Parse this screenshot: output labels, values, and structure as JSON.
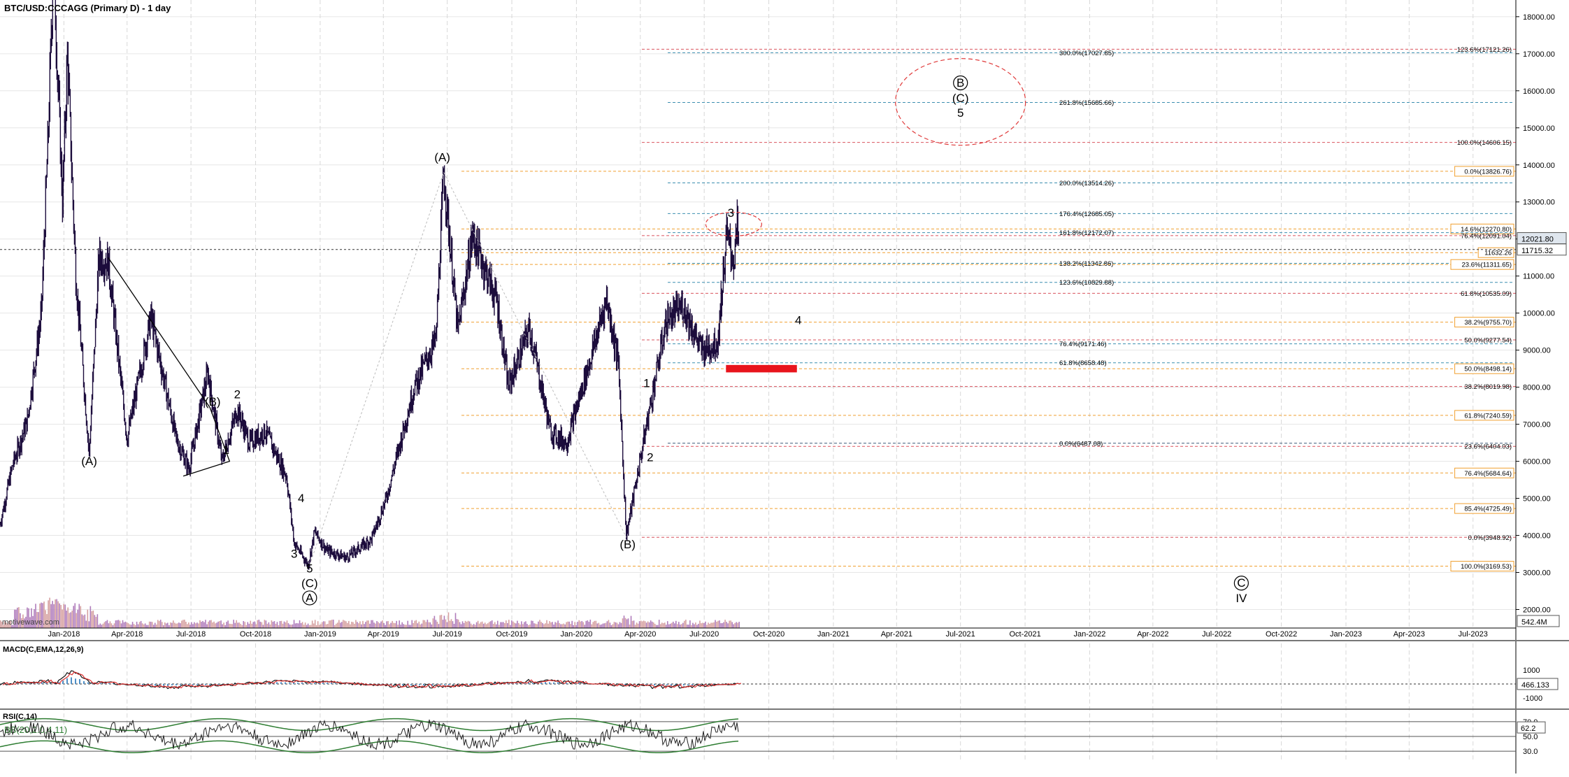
{
  "chart_data": {
    "type": "candlestick",
    "title": "BTC/USD:CCCAGG (Primary D) - 1 day",
    "watermark": "motivewave.com",
    "price_axis": {
      "ylim": [
        1500,
        18450
      ],
      "ticks": [
        2000,
        3000,
        4000,
        5000,
        6000,
        7000,
        8000,
        9000,
        10000,
        11000,
        12000,
        13000,
        14000,
        15000,
        16000,
        17000,
        18000
      ],
      "tick_labels": [
        "2000.00",
        "3000.00",
        "4000.00",
        "5000.00",
        "6000.00",
        "7000.00",
        "8000.00",
        "9000.00",
        "10000.00",
        "11000.00",
        "12000.00",
        "13000.00",
        "14000.00",
        "15000.00",
        "16000.00",
        "17000.00",
        "18000.00"
      ]
    },
    "time_axis": {
      "labels": [
        "Jan-2018",
        "Apr-2018",
        "Jul-2018",
        "Oct-2018",
        "Jan-2019",
        "Apr-2019",
        "Jul-2019",
        "Oct-2019",
        "Jan-2020",
        "Apr-2020",
        "Jul-2020",
        "Oct-2020",
        "Jan-2021",
        "Apr-2021",
        "Jul-2021",
        "Oct-2021",
        "Jan-2022",
        "Apr-2022",
        "Jul-2022",
        "Oct-2022",
        "Jan-2023",
        "Apr-2023",
        "Jul-2023"
      ],
      "start": "2017-10-02",
      "end": "2023-08-31"
    },
    "price_series": {
      "name": "BTC/USD",
      "points": [
        [
          "2017-10-02",
          4300
        ],
        [
          "2017-10-20",
          5900
        ],
        [
          "2017-11-10",
          7100
        ],
        [
          "2017-11-30",
          10000
        ],
        [
          "2017-12-10",
          15000
        ],
        [
          "2017-12-17",
          19500
        ],
        [
          "2017-12-30",
          13000
        ],
        [
          "2018-01-06",
          17000
        ],
        [
          "2018-01-18",
          11000
        ],
        [
          "2018-02-06",
          6200
        ],
        [
          "2018-02-20",
          11500
        ],
        [
          "2018-03-05",
          11400
        ],
        [
          "2018-04-01",
          6600
        ],
        [
          "2018-05-05",
          9900
        ],
        [
          "2018-06-10",
          6600
        ],
        [
          "2018-06-28",
          5800
        ],
        [
          "2018-07-25",
          8400
        ],
        [
          "2018-08-14",
          6000
        ],
        [
          "2018-09-05",
          7400
        ],
        [
          "2018-09-22",
          6500
        ],
        [
          "2018-10-15",
          6800
        ],
        [
          "2018-11-14",
          5600
        ],
        [
          "2018-11-25",
          3800
        ],
        [
          "2018-12-15",
          3200
        ],
        [
          "2018-12-24",
          4100
        ],
        [
          "2019-01-10",
          3600
        ],
        [
          "2019-02-07",
          3400
        ],
        [
          "2019-03-15",
          3900
        ],
        [
          "2019-04-05",
          5000
        ],
        [
          "2019-05-15",
          8000
        ],
        [
          "2019-06-15",
          9300
        ],
        [
          "2019-06-26",
          13800
        ],
        [
          "2019-07-16",
          9500
        ],
        [
          "2019-08-06",
          12100
        ],
        [
          "2019-09-10",
          10300
        ],
        [
          "2019-09-26",
          8000
        ],
        [
          "2019-10-26",
          9600
        ],
        [
          "2019-11-25",
          6800
        ],
        [
          "2019-12-18",
          6500
        ],
        [
          "2020-01-20",
          8700
        ],
        [
          "2020-02-13",
          10400
        ],
        [
          "2020-03-01",
          8600
        ],
        [
          "2020-03-12",
          4000
        ],
        [
          "2020-04-10",
          7000
        ],
        [
          "2020-05-08",
          9800
        ],
        [
          "2020-06-01",
          10200
        ],
        [
          "2020-06-27",
          9000
        ],
        [
          "2020-07-20",
          9200
        ],
        [
          "2020-07-28",
          11000
        ],
        [
          "2020-08-02",
          12100
        ],
        [
          "2020-08-12",
          11400
        ],
        [
          "2020-08-17",
          12300
        ],
        [
          "2020-08-20",
          11800
        ]
      ]
    },
    "last_price": "11715.32",
    "high_marker": "12021.80",
    "volume_label": "542.4M",
    "fib_levels": [
      {
        "label": "123.6%(17121.26)",
        "value": 17121.26,
        "color": "#d9545f",
        "side": "right"
      },
      {
        "label": "300.0%(17027.85)",
        "value": 17027.85,
        "color": "#3c8fb0",
        "side": "mid"
      },
      {
        "label": "261.8%(15685.66)",
        "value": 15685.66,
        "color": "#3c8fb0",
        "side": "mid"
      },
      {
        "label": "100.0%(14606.15)",
        "value": 14606.15,
        "color": "#d9545f",
        "side": "right"
      },
      {
        "label": "0.0%(13826.76)",
        "value": 13826.76,
        "color": "#f0a030",
        "side": "right-box"
      },
      {
        "label": "200.0%(13514.26)",
        "value": 13514.26,
        "color": "#3c8fb0",
        "side": "mid"
      },
      {
        "label": "176.4%(12685.05)",
        "value": 12685.05,
        "color": "#3c8fb0",
        "side": "mid"
      },
      {
        "label": "14.6%(12270.80)",
        "value": 12270.8,
        "color": "#f0a030",
        "side": "right-box"
      },
      {
        "label": "161.8%(12172.07)",
        "value": 12172.07,
        "color": "#3c8fb0",
        "side": "mid"
      },
      {
        "label": "76.4%(12091.04)",
        "value": 12091.04,
        "color": "#d9545f",
        "side": "right"
      },
      {
        "label": "11632.26",
        "value": 11632.26,
        "color": "#f0a030",
        "side": "right-box"
      },
      {
        "label": "138.2%(11342.86)",
        "value": 11342.86,
        "color": "#3c8fb0",
        "side": "mid"
      },
      {
        "label": "23.6%(11311.65)",
        "value": 11311.65,
        "color": "#f0a030",
        "side": "right-box"
      },
      {
        "label": "123.6%(10829.88)",
        "value": 10829.88,
        "color": "#3c8fb0",
        "side": "mid"
      },
      {
        "label": "61.8%(10535.09)",
        "value": 10535.09,
        "color": "#d9545f",
        "side": "right"
      },
      {
        "label": "38.2%(9755.70)",
        "value": 9755.7,
        "color": "#f0a030",
        "side": "right-box"
      },
      {
        "label": "50.0%(9277.54)",
        "value": 9277.54,
        "color": "#d9545f",
        "side": "right"
      },
      {
        "label": "76.4%(9171.46)",
        "value": 9171.46,
        "color": "#3c8fb0",
        "side": "mid"
      },
      {
        "label": "61.8%(8658.48)",
        "value": 8658.48,
        "color": "#3c8fb0",
        "side": "mid"
      },
      {
        "label": "50.0%(8498.14)",
        "value": 8498.14,
        "color": "#f0a030",
        "side": "right-box"
      },
      {
        "label": "38.2%(8019.98)",
        "value": 8019.98,
        "color": "#d9545f",
        "side": "right"
      },
      {
        "label": "61.8%(7240.59)",
        "value": 7240.59,
        "color": "#f0a030",
        "side": "right-box"
      },
      {
        "label": "0.0%(6487.08)",
        "value": 6487.08,
        "color": "#3c5a78",
        "side": "mid"
      },
      {
        "label": "23.6%(6404.03)",
        "value": 6404.03,
        "color": "#d9545f",
        "side": "right"
      },
      {
        "label": "76.4%(5684.64)",
        "value": 5684.64,
        "color": "#f0a030",
        "side": "right-box"
      },
      {
        "label": "85.4%(4725.49)",
        "value": 4725.49,
        "color": "#f0a030",
        "side": "right-box"
      },
      {
        "label": "0.0%(3948.92)",
        "value": 3948.92,
        "color": "#d9545f",
        "side": "right"
      },
      {
        "label": "100.0%(3169.53)",
        "value": 3169.53,
        "color": "#f0a030",
        "side": "right-box"
      }
    ],
    "wave_labels": [
      {
        "text": "(A)",
        "date": "2018-02-06",
        "price": 5900
      },
      {
        "text": "(B)",
        "date": "2018-08-01",
        "price": 7500
      },
      {
        "text": "1",
        "date": "2018-08-20",
        "price": 6200
      },
      {
        "text": "2",
        "date": "2018-09-05",
        "price": 7700
      },
      {
        "text": "3",
        "date": "2018-11-25",
        "price": 3400
      },
      {
        "text": "4",
        "date": "2018-12-05",
        "price": 4900
      },
      {
        "text": "5",
        "date": "2018-12-17",
        "price": 3000
      },
      {
        "text": "(C)",
        "date": "2018-12-17",
        "price": 2600
      },
      {
        "text": "(A)",
        "date": "2019-06-24",
        "price": 14100
      },
      {
        "text": "(B)",
        "date": "2020-03-14",
        "price": 3650
      },
      {
        "text": "1",
        "date": "2020-04-10",
        "price": 8000
      },
      {
        "text": "2",
        "date": "2020-04-15",
        "price": 6000
      },
      {
        "text": "3",
        "date": "2020-08-08",
        "price": 12600
      },
      {
        "text": "4",
        "date": "2020-11-12",
        "price": 9700
      },
      {
        "text": "B",
        "date": "2021-07-01",
        "price": 16100,
        "circled": true
      },
      {
        "text": "(C)",
        "date": "2021-07-01",
        "price": 15690
      },
      {
        "text": "5",
        "date": "2021-07-01",
        "price": 15300
      },
      {
        "text": "A",
        "date": "2018-12-17",
        "price": 2200,
        "circled": true
      },
      {
        "text": "C",
        "date": "2022-08-05",
        "price": 2600,
        "circled": true
      },
      {
        "text": "IV",
        "date": "2022-08-05",
        "price": 2200
      }
    ],
    "target_box": {
      "from": "2020-08-01",
      "to": "2020-11-10",
      "low": 8400,
      "high": 8600,
      "color": "#e8141c"
    },
    "macd": {
      "label": "MACD(C,EMA,12,26,9)",
      "ticks": [
        "1000",
        "-1000"
      ],
      "value": "466.133"
    },
    "rsi": {
      "label": "RSI(C,14)",
      "sub_label": "BB(20,2.0,4.11)",
      "ticks": [
        "70.0",
        "50.0",
        "30.0"
      ],
      "value": "62.2"
    }
  }
}
